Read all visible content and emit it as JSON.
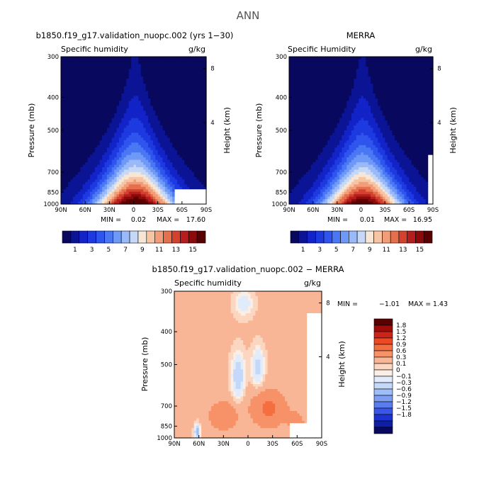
{
  "page_title": "ANN",
  "colors": {
    "humidity_scale": [
      "#08085e",
      "#0c1496",
      "#1223c8",
      "#1d3ae0",
      "#2f55ee",
      "#4a77f3",
      "#6f99f6",
      "#9ab9f8",
      "#c6d8f8",
      "#f5e6d6",
      "#f7c4a4",
      "#f29d78",
      "#e6704e",
      "#d2422f",
      "#b51e1e",
      "#8c0a0a",
      "#5a0000"
    ],
    "diff_scale": [
      "#5a0000",
      "#9e0c0c",
      "#cc2418",
      "#ec4a24",
      "#f56e40",
      "#f79268",
      "#f9b696",
      "#fbd6c0",
      "#fbeee4",
      "#e0ecfb",
      "#c4d9fa",
      "#9fbdf6",
      "#7d9ef2",
      "#5a7cef",
      "#3956e8",
      "#1d33cf",
      "#0e1ea6",
      "#08085e"
    ]
  },
  "chart_data": [
    {
      "type": "heatmap",
      "title": "b1850.f19_g17.validation_nuopc.002 (yrs 1−30)",
      "subtitle_left": "Specific humidity",
      "units": "g/kg",
      "xlabel": "",
      "ylabel": "Pressure (mb)",
      "ylabel_right": "Height (km)",
      "x_ticks": [
        "90N",
        "60N",
        "30N",
        "0",
        "30S",
        "60S",
        "90S"
      ],
      "y_ticks": [
        "300",
        "400",
        "500",
        "700",
        "850",
        "1000"
      ],
      "y_ticks_right": [
        "8",
        "4"
      ],
      "xlim": [
        90,
        -90
      ],
      "ylim": [
        1000,
        300
      ],
      "min_label": "MIN =",
      "min_value": "0.02",
      "max_label": "MAX =",
      "max_value": "17.60",
      "peak": 17.6,
      "colorbar_labels": [
        "1",
        "3",
        "5",
        "7",
        "9",
        "11",
        "13",
        "15"
      ]
    },
    {
      "type": "heatmap",
      "title": "MERRA",
      "subtitle_left": "Specific Humidity",
      "units": "g/kg",
      "xlabel": "",
      "ylabel": "Pressure (mb)",
      "ylabel_right": "Height (km)",
      "x_ticks": [
        "90N",
        "60N",
        "30N",
        "0",
        "30S",
        "60S",
        "90S"
      ],
      "y_ticks": [
        "300",
        "400",
        "500",
        "700",
        "850",
        "1000"
      ],
      "y_ticks_right": [
        "8",
        "4"
      ],
      "xlim": [
        90,
        -90
      ],
      "ylim": [
        1000,
        300
      ],
      "min_label": "MIN =",
      "min_value": "0.01",
      "max_label": "MAX =",
      "max_value": "16.95",
      "peak": 16.95,
      "colorbar_labels": [
        "1",
        "3",
        "5",
        "7",
        "9",
        "11",
        "13",
        "15"
      ]
    },
    {
      "type": "heatmap",
      "title": "b1850.f19_g17.validation_nuopc.002 − MERRA",
      "subtitle_left": "Specific humidity",
      "units": "g/kg",
      "xlabel": "",
      "ylabel": "Pressure (mb)",
      "ylabel_right": "Height (km)",
      "x_ticks": [
        "90N",
        "60N",
        "30N",
        "0",
        "30S",
        "60S",
        "90S"
      ],
      "y_ticks": [
        "300",
        "400",
        "500",
        "700",
        "850",
        "1000"
      ],
      "y_ticks_right": [
        "8",
        "4"
      ],
      "xlim": [
        90,
        -90
      ],
      "ylim": [
        1000,
        300
      ],
      "min_label": "MIN =",
      "min_value": "−1.01",
      "max_label": "MAX =",
      "max_value": "1.43",
      "colorbar_labels": [
        "1.8",
        "1.5",
        "1.2",
        "0.9",
        "0.6",
        "0.3",
        "0.1",
        "0",
        "−0.1",
        "−0.3",
        "−0.6",
        "−0.9",
        "−1.2",
        "−1.5",
        "−1.8"
      ]
    }
  ]
}
